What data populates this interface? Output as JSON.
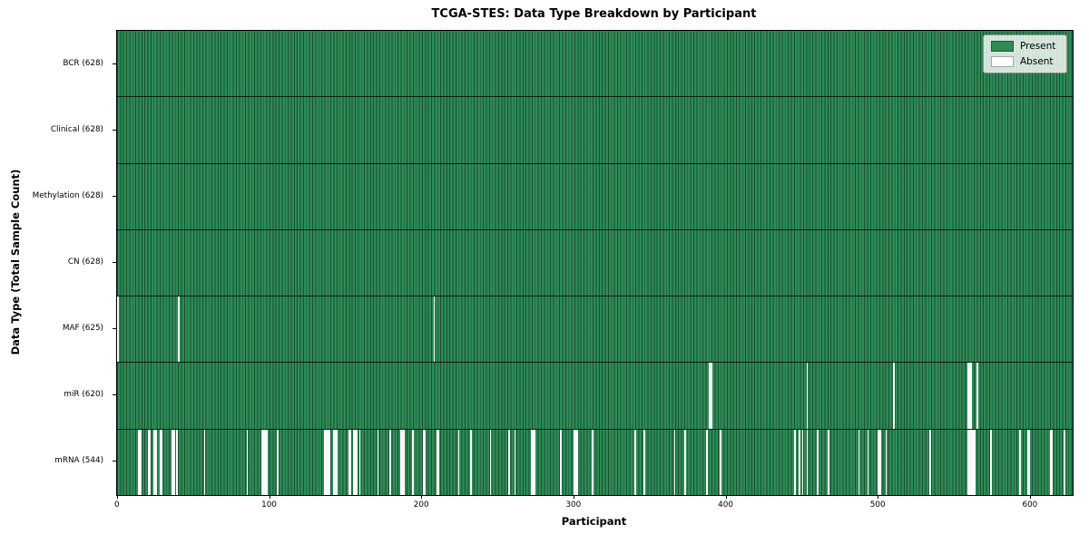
{
  "title": "TCGA-STES: Data Type Breakdown by Participant",
  "chart_data": {
    "type": "heatmap",
    "title": "TCGA-STES: Data Type Breakdown by Participant",
    "xlabel": "Participant",
    "ylabel": "Data Type (Total Sample Count)",
    "n_participants": 628,
    "x_ticks": [
      0,
      100,
      200,
      300,
      400,
      500,
      600
    ],
    "grid": "row-separators",
    "colors": {
      "present": "#2e8b57",
      "absent": "#fbfbfb",
      "bar_edge": "#0a2416",
      "plot_border": "#000000"
    },
    "legend": {
      "position": "upper right",
      "entries": [
        {
          "label": "Present",
          "color": "#2e8b57"
        },
        {
          "label": "Absent",
          "color": "#ffffff"
        }
      ]
    },
    "rows": [
      {
        "name": "BCR",
        "label": "BCR (628)",
        "present_count": 628,
        "absent_count": 0,
        "absent_participants": []
      },
      {
        "name": "Clinical",
        "label": "Clinical (628)",
        "present_count": 628,
        "absent_count": 0,
        "absent_participants": []
      },
      {
        "name": "Methylation",
        "label": "Methylation (628)",
        "present_count": 628,
        "absent_count": 0,
        "absent_participants": []
      },
      {
        "name": "CN",
        "label": "CN (628)",
        "present_count": 628,
        "absent_count": 0,
        "absent_participants": []
      },
      {
        "name": "MAF",
        "label": "MAF (625)",
        "present_count": 625,
        "absent_count": 3,
        "absent_participants": [
          0,
          40,
          208
        ]
      },
      {
        "name": "miR",
        "label": "miR (620)",
        "present_count": 620,
        "absent_count": 8,
        "absent_participants": [
          389,
          390,
          453,
          510,
          559,
          560,
          561,
          565
        ]
      },
      {
        "name": "mRNA",
        "label": "mRNA (544)",
        "present_count": 544,
        "absent_count": 84,
        "absent_participants": [
          14,
          15,
          20,
          21,
          24,
          25,
          28,
          29,
          36,
          37,
          39,
          57,
          85,
          95,
          96,
          97,
          98,
          105,
          136,
          137,
          138,
          139,
          142,
          143,
          144,
          152,
          153,
          155,
          156,
          157,
          159,
          171,
          179,
          186,
          187,
          188,
          194,
          201,
          202,
          210,
          211,
          224,
          232,
          245,
          257,
          261,
          272,
          273,
          274,
          291,
          300,
          301,
          302,
          312,
          340,
          346,
          366,
          373,
          387,
          396,
          445,
          448,
          450,
          453,
          460,
          467,
          487,
          493,
          500,
          501,
          505,
          534,
          559,
          560,
          561,
          562,
          563,
          574,
          593,
          598,
          599,
          613,
          614,
          622
        ]
      }
    ]
  }
}
